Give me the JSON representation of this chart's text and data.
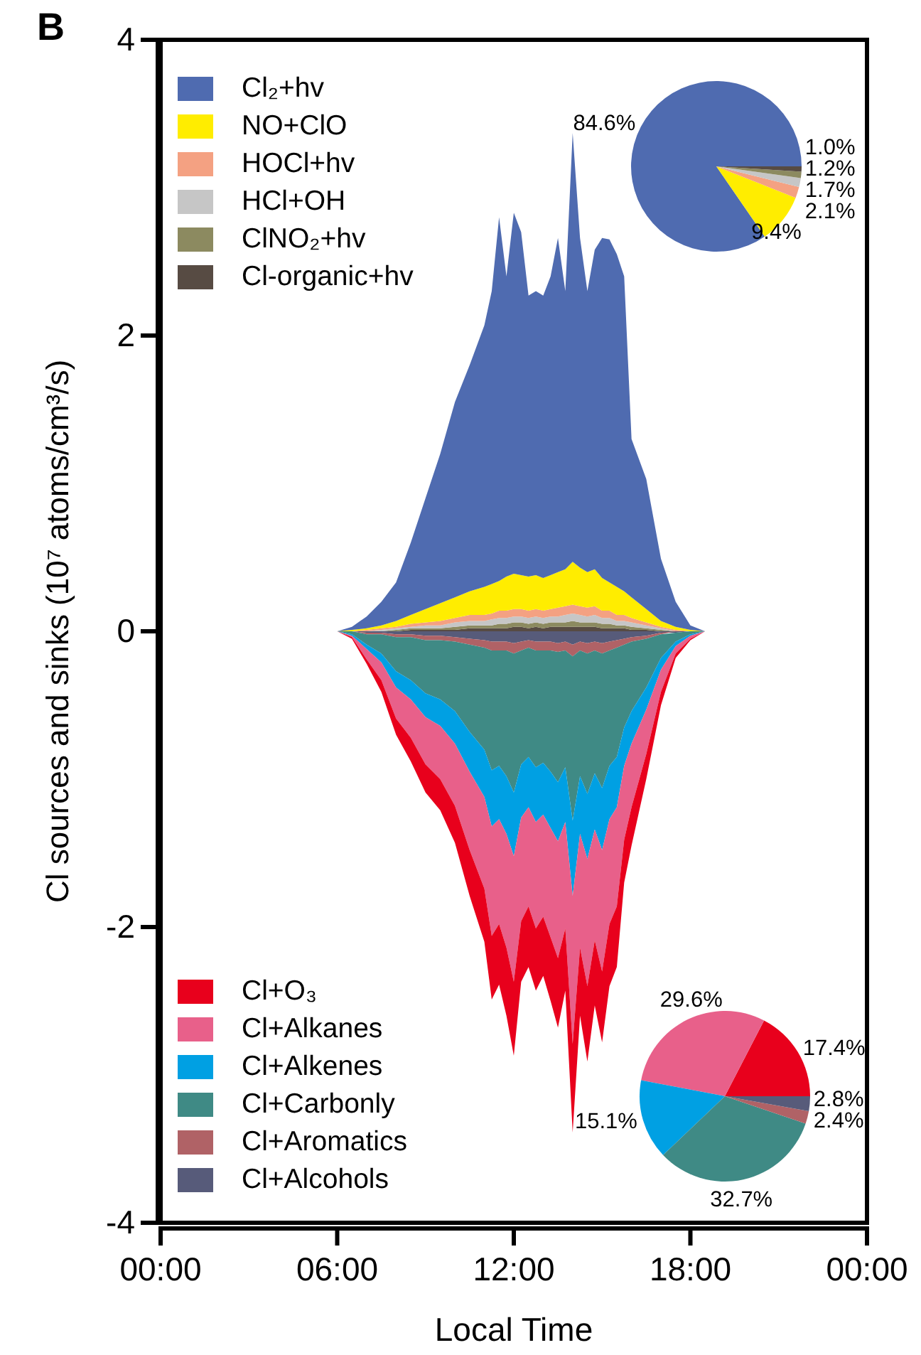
{
  "chart_data": [
    {
      "type": "area",
      "stacked": true,
      "ylabel": "Cl sources and sinks (10⁷ atoms/cm³/s)",
      "xlabel": "Local Time",
      "annotations": [
        "B"
      ],
      "legend": "top left",
      "xlim": [
        0,
        24
      ],
      "xticks": [
        {
          "value": 0,
          "label": "00:00"
        },
        {
          "value": 6,
          "label": "06:00"
        },
        {
          "value": 12,
          "label": "12:00"
        },
        {
          "value": 18,
          "label": "18:00"
        },
        {
          "value": 24,
          "label": "00:00"
        }
      ],
      "ylim": [
        -4,
        4
      ],
      "yticks": [
        -4,
        -2,
        0,
        2,
        4
      ],
      "x": [
        0,
        6,
        6.5,
        7,
        7.5,
        8,
        8.5,
        9,
        9.5,
        10,
        10.5,
        11,
        11.25,
        11.5,
        11.75,
        12,
        12.25,
        12.5,
        12.75,
        13,
        13.25,
        13.5,
        13.75,
        14,
        14.25,
        14.5,
        14.75,
        15,
        15.25,
        15.5,
        15.75,
        16,
        16.5,
        17,
        17.5,
        18,
        18.5,
        24
      ],
      "series": [
        {
          "name": "Cl-organic+hv",
          "color": "#574b43",
          "values": [
            0,
            0,
            0,
            0,
            0,
            0,
            0.01,
            0.01,
            0.01,
            0.01,
            0.02,
            0.02,
            0.02,
            0.02,
            0.02,
            0.03,
            0.03,
            0.02,
            0.03,
            0.02,
            0.03,
            0.03,
            0.03,
            0.03,
            0.03,
            0.03,
            0.03,
            0.02,
            0.02,
            0.02,
            0.02,
            0.01,
            0.01,
            0,
            0,
            0,
            0,
            0
          ]
        },
        {
          "name": "ClNO₂+hv",
          "color": "#8c8a60",
          "values": [
            0,
            0,
            0,
            0,
            0,
            0.01,
            0.01,
            0.01,
            0.01,
            0.02,
            0.02,
            0.02,
            0.02,
            0.03,
            0.03,
            0.03,
            0.03,
            0.03,
            0.03,
            0.03,
            0.03,
            0.03,
            0.03,
            0.04,
            0.03,
            0.03,
            0.03,
            0.03,
            0.03,
            0.02,
            0.02,
            0.02,
            0.01,
            0.01,
            0,
            0,
            0,
            0
          ]
        },
        {
          "name": "HCl+OH",
          "color": "#c6c6c6",
          "values": [
            0,
            0,
            0,
            0,
            0.01,
            0.01,
            0.01,
            0.02,
            0.02,
            0.03,
            0.03,
            0.03,
            0.04,
            0.04,
            0.04,
            0.04,
            0.04,
            0.04,
            0.04,
            0.04,
            0.04,
            0.04,
            0.05,
            0.05,
            0.05,
            0.04,
            0.05,
            0.04,
            0.04,
            0.03,
            0.03,
            0.03,
            0.02,
            0.01,
            0,
            0,
            0,
            0
          ]
        },
        {
          "name": "HOCl+hv",
          "color": "#f4a182",
          "values": [
            0,
            0,
            0,
            0.01,
            0.01,
            0.01,
            0.02,
            0.02,
            0.03,
            0.03,
            0.04,
            0.04,
            0.04,
            0.05,
            0.05,
            0.05,
            0.05,
            0.05,
            0.05,
            0.05,
            0.05,
            0.06,
            0.06,
            0.06,
            0.06,
            0.06,
            0.06,
            0.05,
            0.05,
            0.04,
            0.04,
            0.03,
            0.02,
            0.01,
            0.01,
            0,
            0,
            0
          ]
        },
        {
          "name": "NO+ClO",
          "color": "#ffed00",
          "values": [
            0,
            0,
            0.01,
            0.01,
            0.02,
            0.04,
            0.06,
            0.09,
            0.12,
            0.14,
            0.16,
            0.19,
            0.2,
            0.2,
            0.23,
            0.24,
            0.23,
            0.23,
            0.23,
            0.22,
            0.23,
            0.24,
            0.25,
            0.29,
            0.26,
            0.24,
            0.25,
            0.22,
            0.19,
            0.19,
            0.16,
            0.14,
            0.09,
            0.04,
            0.02,
            0.01,
            0,
            0
          ]
        },
        {
          "name": "Cl₂+hv",
          "color": "#4f6bb0",
          "values": [
            0,
            0,
            0.02,
            0.08,
            0.16,
            0.26,
            0.49,
            0.75,
            1.01,
            1.32,
            1.53,
            1.77,
            1.98,
            2.46,
            2.03,
            2.44,
            2.32,
            1.9,
            1.92,
            1.91,
            2.02,
            2.26,
            1.88,
            2.9,
            2.23,
            1.9,
            2.16,
            2.3,
            2.32,
            2.25,
            2.13,
            1.07,
            0.88,
            0.42,
            0.17,
            0.03,
            0,
            0
          ]
        }
      ]
    },
    {
      "type": "area",
      "stacked": true,
      "legend": "bottom left",
      "xlim": [
        0,
        24
      ],
      "ylim": [
        -4,
        4
      ],
      "x": [
        0,
        6,
        6.5,
        7,
        7.5,
        8,
        8.5,
        9,
        9.5,
        10,
        10.5,
        11,
        11.25,
        11.5,
        11.75,
        12,
        12.25,
        12.5,
        12.75,
        13,
        13.25,
        13.5,
        13.75,
        14,
        14.25,
        14.5,
        14.75,
        15,
        15.25,
        15.5,
        15.75,
        16,
        16.5,
        17,
        17.5,
        18,
        18.5,
        24
      ],
      "series": [
        {
          "name": "Cl+Alcohols",
          "color": "#575b7a",
          "values": [
            0,
            0,
            0,
            -0.01,
            -0.01,
            -0.02,
            -0.02,
            -0.03,
            -0.03,
            -0.04,
            -0.05,
            -0.06,
            -0.07,
            -0.07,
            -0.07,
            -0.08,
            -0.07,
            -0.06,
            -0.07,
            -0.07,
            -0.07,
            -0.08,
            -0.07,
            -0.09,
            -0.07,
            -0.08,
            -0.07,
            -0.08,
            -0.07,
            -0.06,
            -0.05,
            -0.04,
            -0.03,
            -0.01,
            -0.01,
            0,
            0,
            0
          ]
        },
        {
          "name": "Cl+Aromatics",
          "color": "#b06266",
          "values": [
            0,
            0,
            0,
            -0.01,
            -0.01,
            -0.02,
            -0.02,
            -0.03,
            -0.03,
            -0.03,
            -0.04,
            -0.05,
            -0.06,
            -0.06,
            -0.06,
            -0.07,
            -0.06,
            -0.05,
            -0.06,
            -0.06,
            -0.06,
            -0.06,
            -0.06,
            -0.08,
            -0.06,
            -0.07,
            -0.06,
            -0.07,
            -0.06,
            -0.05,
            -0.04,
            -0.03,
            -0.02,
            -0.01,
            0,
            0,
            0,
            0
          ]
        },
        {
          "name": "Cl+Carbonly",
          "color": "#3f8a85",
          "values": [
            0,
            0,
            -0.02,
            -0.07,
            -0.13,
            -0.23,
            -0.29,
            -0.36,
            -0.4,
            -0.47,
            -0.59,
            -0.69,
            -0.81,
            -0.78,
            -0.85,
            -0.94,
            -0.77,
            -0.74,
            -0.79,
            -0.76,
            -0.82,
            -0.88,
            -0.79,
            -1.11,
            -0.85,
            -0.95,
            -0.83,
            -0.91,
            -0.78,
            -0.74,
            -0.56,
            -0.47,
            -0.33,
            -0.16,
            -0.06,
            -0.02,
            0,
            0
          ]
        },
        {
          "name": "Cl+Alkenes",
          "color": "#00a0e3",
          "values": [
            0,
            0,
            -0.01,
            -0.03,
            -0.06,
            -0.11,
            -0.13,
            -0.16,
            -0.18,
            -0.22,
            -0.27,
            -0.32,
            -0.38,
            -0.36,
            -0.39,
            -0.43,
            -0.36,
            -0.34,
            -0.37,
            -0.35,
            -0.38,
            -0.4,
            -0.37,
            -0.51,
            -0.39,
            -0.44,
            -0.38,
            -0.42,
            -0.36,
            -0.34,
            -0.26,
            -0.22,
            -0.15,
            -0.08,
            -0.03,
            -0.01,
            0,
            0
          ]
        },
        {
          "name": "Cl+Alkanes",
          "color": "#e8608a",
          "values": [
            0,
            0,
            -0.01,
            -0.07,
            -0.12,
            -0.21,
            -0.26,
            -0.32,
            -0.36,
            -0.42,
            -0.53,
            -0.62,
            -0.74,
            -0.71,
            -0.77,
            -0.85,
            -0.7,
            -0.67,
            -0.72,
            -0.69,
            -0.74,
            -0.79,
            -0.72,
            -1,
            -0.77,
            -0.86,
            -0.75,
            -0.82,
            -0.71,
            -0.67,
            -0.5,
            -0.43,
            -0.3,
            -0.15,
            -0.05,
            -0.02,
            0,
            0
          ]
        },
        {
          "name": "Cl+O₃",
          "color": "#e8001c",
          "values": [
            0,
            0,
            -0.01,
            -0.03,
            -0.08,
            -0.11,
            -0.16,
            -0.19,
            -0.21,
            -0.25,
            -0.31,
            -0.36,
            -0.43,
            -0.41,
            -0.46,
            -0.5,
            -0.41,
            -0.41,
            -0.42,
            -0.4,
            -0.43,
            -0.47,
            -0.42,
            -0.6,
            -0.46,
            -0.51,
            -0.44,
            -0.48,
            -0.42,
            -0.41,
            -0.29,
            -0.26,
            -0.17,
            -0.09,
            -0.03,
            -0.01,
            0,
            0
          ]
        }
      ]
    },
    {
      "type": "pie",
      "categories": [
        null,
        null,
        null,
        null,
        null,
        null
      ],
      "values": [
        84.6,
        9.4,
        2.1,
        1.7,
        1.2,
        1.0
      ],
      "colors": [
        "#4f6bb0",
        "#ffed00",
        "#f4a182",
        "#c6c6c6",
        "#8c8a60",
        "#574b43"
      ],
      "value_labels": [
        "84.6%",
        "9.4%",
        "2.1%",
        "1.7%",
        "1.2%",
        "1.0%"
      ]
    },
    {
      "type": "pie",
      "categories": [
        null,
        null,
        null,
        null,
        null,
        null
      ],
      "values": [
        17.4,
        29.6,
        15.1,
        32.7,
        2.4,
        2.8
      ],
      "colors": [
        "#e8001c",
        "#e8608a",
        "#00a0e3",
        "#3f8a85",
        "#b06266",
        "#575b7a"
      ],
      "value_labels": [
        "17.4%",
        "29.6%",
        "15.1%",
        "32.7%",
        "2.4%",
        "2.8%"
      ]
    }
  ]
}
